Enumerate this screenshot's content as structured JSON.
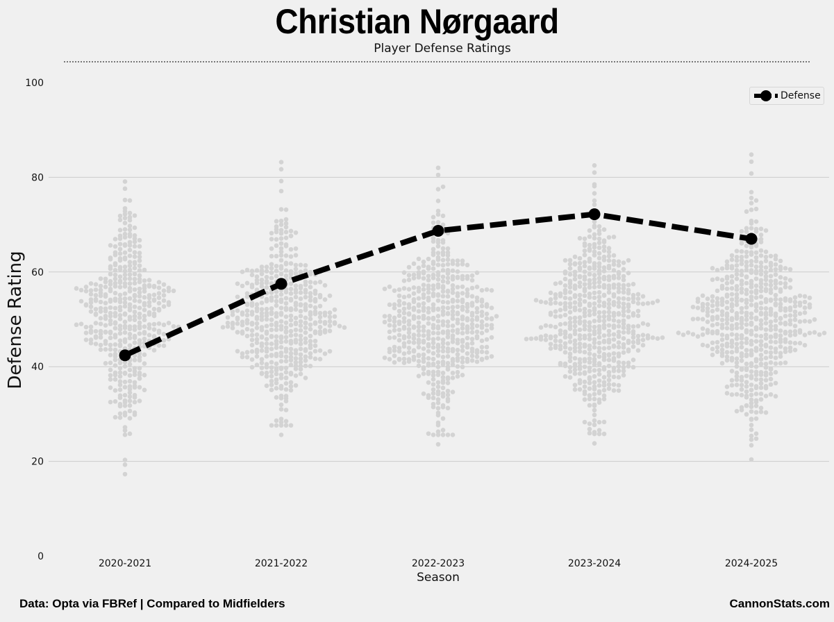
{
  "header": {
    "title": "Christian Nørgaard",
    "subtitle": "Player Defense Ratings"
  },
  "footer": {
    "source": "Data: Opta via FBRef | Compared to Midfielders",
    "brand": "CannonStats.com"
  },
  "colors": {
    "background": "#f0f0f0",
    "player_line": "#000000",
    "swarm_points": "#d3d3d3",
    "grid": "#cbcbcb"
  },
  "chart_data": {
    "type": "line",
    "title": "Christian Nørgaard",
    "subtitle": "Player Defense Ratings",
    "xlabel": "Season",
    "ylabel": "Defense Rating",
    "categories": [
      "2020-2021",
      "2021-2022",
      "2022-2023",
      "2023-2024",
      "2024-2025"
    ],
    "ylim": [
      0,
      100
    ],
    "yticks": [
      0,
      20,
      40,
      60,
      80,
      100
    ],
    "grid": true,
    "legend_position": "top-right",
    "series": [
      {
        "name": "Defense",
        "values": [
          42.4,
          57.5,
          68.7,
          72.2,
          67.0
        ],
        "style": "dashed",
        "marker": "circle"
      }
    ],
    "background_distribution": {
      "description_note": "beeswarm of midfielder defense ratings per season",
      "distributions": [
        {
          "season": "2020-2021",
          "min": 17.3,
          "max": 79.1,
          "center": 50,
          "count": 430
        },
        {
          "season": "2021-2022",
          "min": 25.6,
          "max": 83.2,
          "center": 50,
          "count": 480
        },
        {
          "season": "2022-2023",
          "min": 23.6,
          "max": 82.0,
          "center": 50,
          "count": 520
        },
        {
          "season": "2023-2024",
          "min": 23.8,
          "max": 82.5,
          "center": 50,
          "count": 540
        },
        {
          "season": "2024-2025",
          "min": 20.4,
          "max": 84.8,
          "center": 50,
          "count": 560
        }
      ]
    }
  }
}
